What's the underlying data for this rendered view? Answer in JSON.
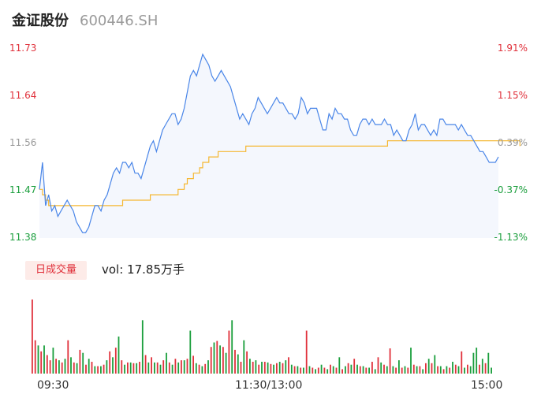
{
  "header": {
    "name": "金证股份",
    "code": "600446.SH"
  },
  "price_axis": {
    "left": [
      {
        "text": "11.73",
        "tone": "up"
      },
      {
        "text": "11.64",
        "tone": "up"
      },
      {
        "text": "11.56",
        "tone": "flat"
      },
      {
        "text": "11.47",
        "tone": "down"
      },
      {
        "text": "11.38",
        "tone": "down"
      }
    ],
    "right": [
      {
        "text": "1.91%",
        "tone": "up"
      },
      {
        "text": "1.15%",
        "tone": "up"
      },
      {
        "text": "0.39%",
        "tone": "flat"
      },
      {
        "text": "-0.37%",
        "tone": "down"
      },
      {
        "text": "-1.13%",
        "tone": "down"
      }
    ]
  },
  "volume": {
    "badge": "日成交量",
    "text": "vol: 17.85万手"
  },
  "time_axis": [
    "09:30",
    "11:30/13:00",
    "15:00"
  ],
  "colors": {
    "price_line": "#4a86e8",
    "avg_line": "#f5b731",
    "area_fill": "#f4f7fd",
    "up": "#e0303a",
    "down": "#1a9e3c"
  },
  "chart_data": [
    {
      "type": "line",
      "title": "",
      "xlabel": "",
      "ylabel": "",
      "ylim": [
        11.38,
        11.73
      ],
      "x_ticks": [
        "09:30",
        "11:30/13:00",
        "15:00"
      ],
      "series": [
        {
          "role": "price",
          "values": [
            11.47,
            11.52,
            11.44,
            11.46,
            11.43,
            11.44,
            11.42,
            11.43,
            11.44,
            11.45,
            11.44,
            11.43,
            11.41,
            11.4,
            11.39,
            11.39,
            11.4,
            11.42,
            11.44,
            11.44,
            11.43,
            11.45,
            11.46,
            11.48,
            11.5,
            11.51,
            11.5,
            11.52,
            11.52,
            11.51,
            11.52,
            11.5,
            11.5,
            11.49,
            11.51,
            11.53,
            11.55,
            11.56,
            11.54,
            11.56,
            11.58,
            11.59,
            11.6,
            11.61,
            11.61,
            11.59,
            11.6,
            11.62,
            11.65,
            11.68,
            11.69,
            11.68,
            11.7,
            11.72,
            11.71,
            11.7,
            11.68,
            11.67,
            11.68,
            11.69,
            11.68,
            11.67,
            11.66,
            11.64,
            11.62,
            11.6,
            11.61,
            11.6,
            11.59,
            11.61,
            11.62,
            11.64,
            11.63,
            11.62,
            11.61,
            11.62,
            11.63,
            11.64,
            11.63,
            11.63,
            11.62,
            11.61,
            11.61,
            11.6,
            11.61,
            11.64,
            11.63,
            11.61,
            11.62,
            11.62,
            11.62,
            11.6,
            11.58,
            11.58,
            11.61,
            11.6,
            11.62,
            11.61,
            11.61,
            11.6,
            11.6,
            11.58,
            11.57,
            11.57,
            11.59,
            11.6,
            11.6,
            11.59,
            11.6,
            11.59,
            11.59,
            11.59,
            11.6,
            11.59,
            11.59,
            11.57,
            11.58,
            11.57,
            11.56,
            11.56,
            11.58,
            11.59,
            11.61,
            11.58,
            11.59,
            11.59,
            11.58,
            11.57,
            11.58,
            11.57,
            11.6,
            11.6,
            11.59,
            11.59,
            11.59,
            11.59,
            11.58,
            11.59,
            11.58,
            11.57,
            11.57,
            11.56,
            11.55,
            11.54,
            11.54,
            11.53,
            11.52,
            11.52,
            11.52,
            11.53
          ],
          "color": "#4a86e8"
        },
        {
          "role": "average",
          "values": [
            11.47,
            11.46,
            11.45,
            11.44,
            11.44,
            11.44,
            11.44,
            11.44,
            11.44,
            11.44,
            11.44,
            11.44,
            11.44,
            11.44,
            11.44,
            11.44,
            11.44,
            11.44,
            11.44,
            11.44,
            11.44,
            11.44,
            11.44,
            11.44,
            11.44,
            11.44,
            11.44,
            11.45,
            11.45,
            11.45,
            11.45,
            11.45,
            11.45,
            11.45,
            11.45,
            11.45,
            11.46,
            11.46,
            11.46,
            11.46,
            11.46,
            11.46,
            11.46,
            11.46,
            11.46,
            11.47,
            11.47,
            11.48,
            11.49,
            11.49,
            11.5,
            11.5,
            11.51,
            11.52,
            11.52,
            11.53,
            11.53,
            11.53,
            11.54,
            11.54,
            11.54,
            11.54,
            11.54,
            11.54,
            11.54,
            11.54,
            11.54,
            11.55,
            11.55,
            11.55,
            11.55,
            11.55,
            11.55,
            11.55,
            11.55,
            11.55,
            11.55,
            11.55,
            11.55,
            11.55,
            11.55,
            11.55,
            11.55,
            11.55,
            11.55,
            11.55,
            11.55,
            11.55,
            11.55,
            11.55,
            11.55,
            11.55,
            11.55,
            11.55,
            11.55,
            11.55,
            11.55,
            11.55,
            11.55,
            11.55,
            11.55,
            11.55,
            11.55,
            11.55,
            11.55,
            11.55,
            11.55,
            11.55,
            11.55,
            11.55,
            11.55,
            11.55,
            11.55,
            11.56,
            11.56,
            11.56,
            11.56,
            11.56,
            11.56,
            11.56,
            11.56,
            11.56,
            11.56,
            11.56,
            11.56,
            11.56,
            11.56,
            11.56,
            11.56,
            11.56,
            11.56,
            11.56,
            11.56,
            11.56,
            11.56,
            11.56,
            11.56,
            11.56,
            11.56,
            11.56,
            11.56,
            11.56,
            11.56,
            11.56,
            11.56,
            11.56,
            11.56,
            11.56,
            11.56,
            11.56,
            11.56,
            11.56,
            11.56,
            11.56,
            11.56,
            11.56,
            11.55
          ],
          "color": "#f5b731"
        }
      ]
    },
    {
      "type": "bar",
      "title": "日成交量",
      "ylim": [
        0,
        100
      ],
      "series": [
        {
          "role": "volume",
          "values": [
            100,
            45,
            38,
            30,
            38,
            25,
            18,
            35,
            20,
            18,
            15,
            20,
            45,
            22,
            15,
            14,
            32,
            28,
            12,
            20,
            16,
            10,
            10,
            10,
            12,
            18,
            30,
            22,
            35,
            50,
            18,
            12,
            15,
            15,
            14,
            14,
            16,
            72,
            25,
            15,
            22,
            15,
            15,
            12,
            18,
            28,
            15,
            12,
            20,
            15,
            18,
            18,
            20,
            58,
            24,
            14,
            12,
            10,
            13,
            18,
            36,
            42,
            44,
            38,
            36,
            28,
            58,
            72,
            32,
            26,
            16,
            45,
            30,
            20,
            16,
            18,
            12,
            16,
            16,
            15,
            13,
            12,
            14,
            16,
            14,
            18,
            22,
            12,
            10,
            10,
            8,
            8,
            58,
            10,
            8,
            6,
            8,
            12,
            8,
            6,
            12,
            10,
            8,
            22,
            6,
            10,
            14,
            12,
            20,
            12,
            10,
            10,
            8,
            8,
            16,
            6,
            22,
            15,
            12,
            10,
            34,
            10,
            8,
            18,
            8,
            10,
            8,
            35,
            12,
            10,
            10,
            6,
            14,
            20,
            14,
            25,
            10,
            10,
            6,
            10,
            8,
            16,
            12,
            10,
            30,
            8,
            12,
            10,
            28,
            35,
            12,
            20,
            14,
            28,
            8
          ],
          "directions": [
            "up",
            "up",
            "down",
            "up",
            "down",
            "up",
            "up",
            "down",
            "up",
            "down",
            "up",
            "down",
            "up",
            "down",
            "up",
            "down",
            "up",
            "down",
            "up",
            "down",
            "up",
            "down",
            "up",
            "down",
            "up",
            "down",
            "up",
            "down",
            "up",
            "down",
            "up",
            "down",
            "up",
            "down",
            "up",
            "down",
            "up",
            "down",
            "up",
            "down",
            "up",
            "down",
            "up",
            "down",
            "up",
            "down",
            "up",
            "down",
            "up",
            "down",
            "up",
            "down",
            "up",
            "down",
            "up",
            "down",
            "up",
            "down",
            "up",
            "down",
            "up",
            "down",
            "up",
            "down",
            "up",
            "down",
            "up",
            "down",
            "up",
            "down",
            "up",
            "down",
            "up",
            "down",
            "up",
            "down",
            "up",
            "down",
            "up",
            "down",
            "up",
            "down",
            "up",
            "down",
            "up",
            "down",
            "up",
            "down",
            "up",
            "down",
            "up",
            "down",
            "up",
            "down",
            "up",
            "down",
            "up",
            "down",
            "up",
            "down",
            "up",
            "down",
            "up",
            "down",
            "up",
            "down",
            "up",
            "down",
            "up",
            "down",
            "up",
            "down",
            "up",
            "down",
            "up",
            "down",
            "up",
            "down",
            "up",
            "down",
            "up",
            "down",
            "up",
            "down",
            "up",
            "down",
            "up",
            "down",
            "up",
            "down",
            "up",
            "down",
            "up",
            "down",
            "up",
            "down",
            "up",
            "down",
            "up",
            "down",
            "up",
            "down",
            "up",
            "down",
            "up",
            "down",
            "up",
            "down",
            "down",
            "down",
            "up",
            "down",
            "up",
            "down",
            "down"
          ]
        }
      ]
    }
  ]
}
